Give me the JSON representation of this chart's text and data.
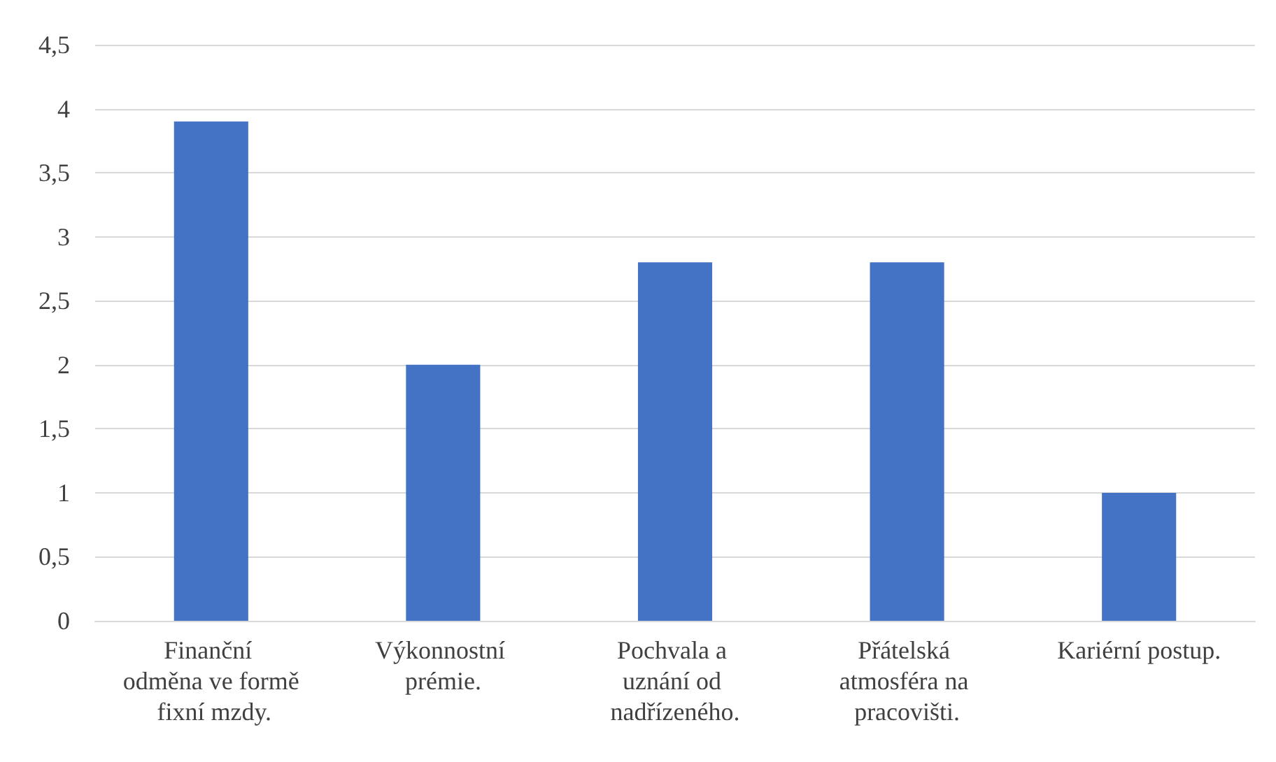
{
  "chart_data": {
    "type": "bar",
    "categories": [
      "Finanční odměna ve formě fixní mzdy.",
      "Výkonnostní prémie.",
      "Pochvala a uznání od nadřízeného.",
      "Přátelská atmosféra na pracovišti.",
      "Kariérní postup."
    ],
    "values": [
      3.9,
      2,
      2.8,
      2.8,
      1
    ],
    "color": "#4472c4",
    "ylim": [
      0,
      4.5
    ],
    "yticks": [
      0,
      {
        "value": 0.5,
        "label": "0,5"
      },
      1,
      {
        "value": 1.5,
        "label": "1,5"
      },
      2,
      {
        "value": 2.5,
        "label": "2,5"
      },
      3,
      {
        "value": 3.5,
        "label": "3,5"
      },
      4,
      {
        "value": 4.5,
        "label": "4,5"
      }
    ],
    "grid": "y"
  }
}
